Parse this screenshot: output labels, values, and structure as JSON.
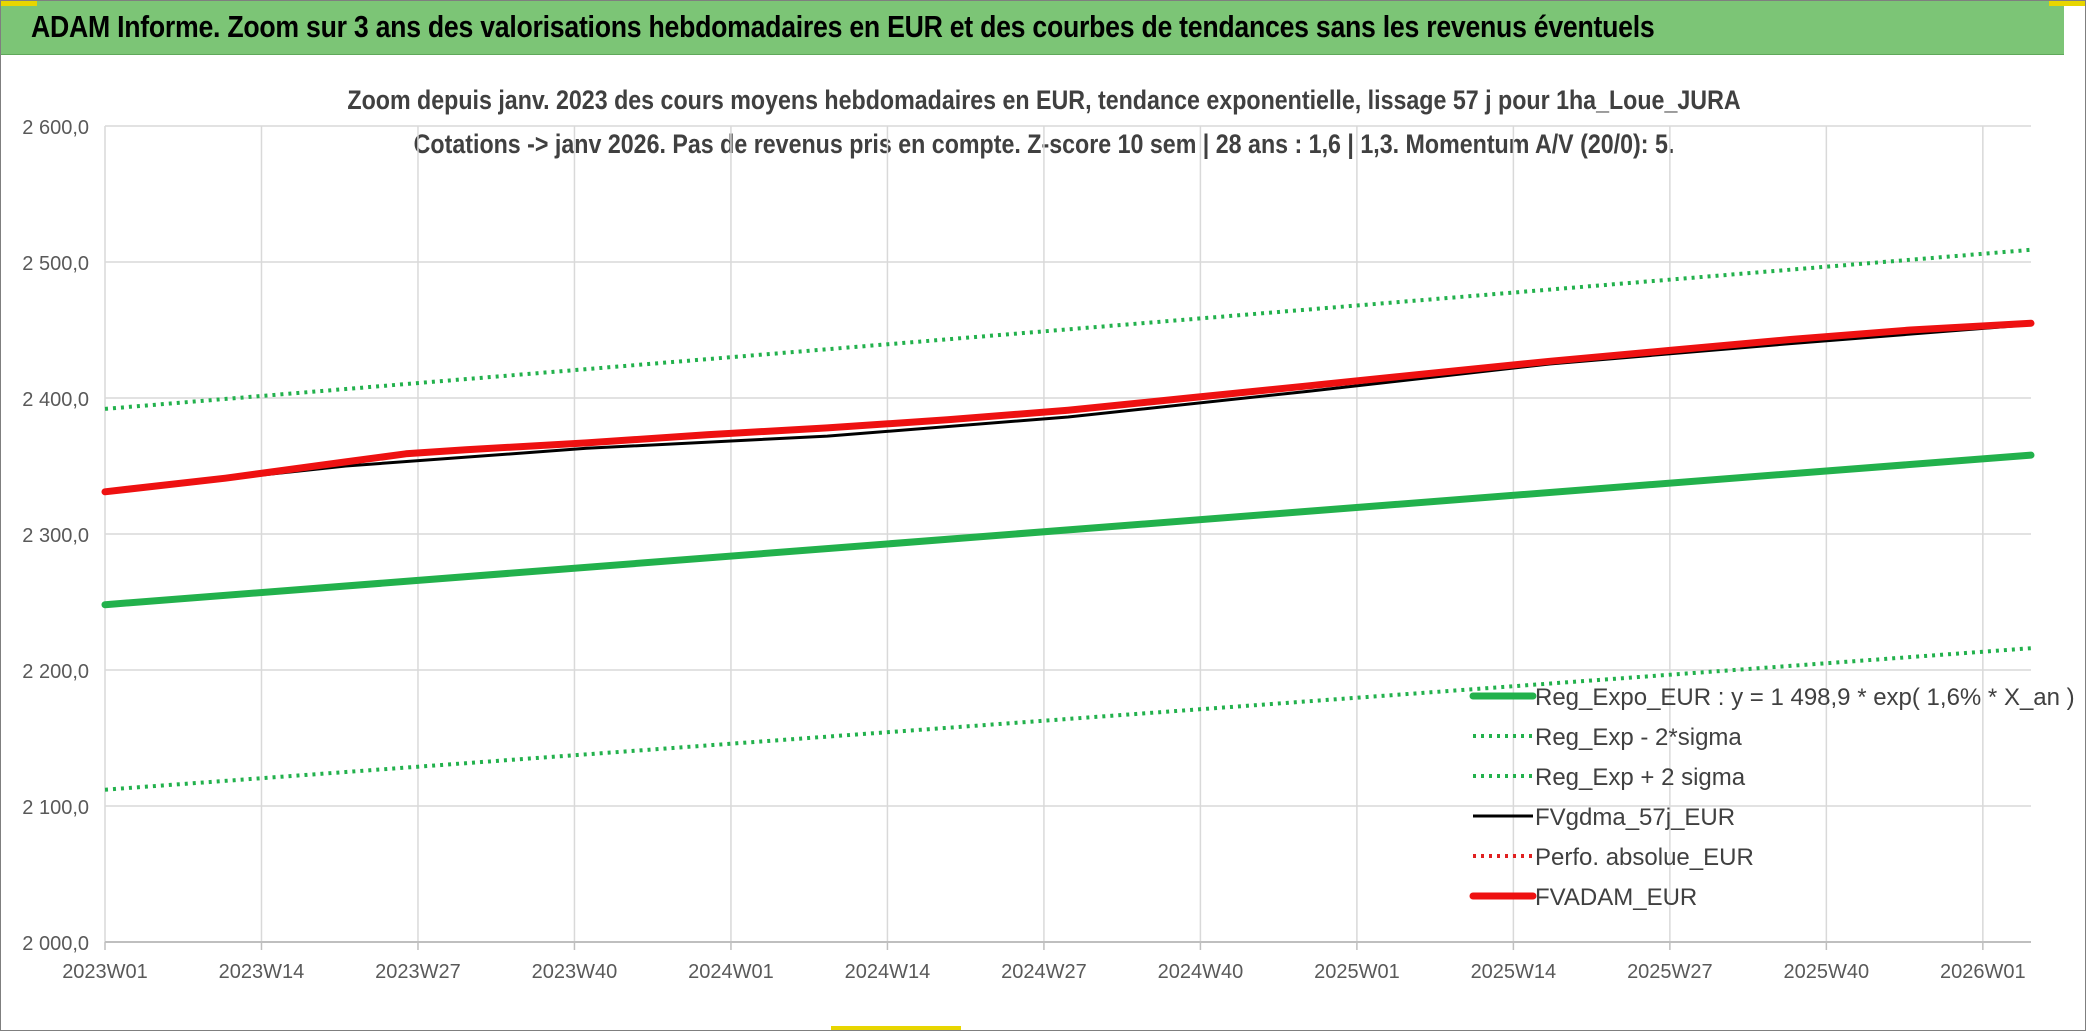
{
  "banner": {
    "title": "ADAM Informe. Zoom sur 3 ans des valorisations hebdomadaires en EUR et des courbes de tendances sans les revenus éventuels"
  },
  "chart_data": {
    "type": "line",
    "title": "Zoom depuis janv. 2023 des cours moyens hebdomadaires en EUR, tendance exponentielle, lissage 57 j pour 1ha_Loue_JURA",
    "subtitle": "Cotations -> janv 2026. Pas de revenus pris en compte. Z-score 10 sem | 28 ans : 1,6  | 1,3. Momentum A/V (20/0): 5.",
    "x_ticks": [
      "2023W01",
      "2023W14",
      "2023W27",
      "2023W40",
      "2024W01",
      "2024W14",
      "2024W27",
      "2024W40",
      "2025W01",
      "2025W14",
      "2025W27",
      "2025W40",
      "2026W01"
    ],
    "y_ticks": [
      "2 000,0",
      "2 100,0",
      "2 200,0",
      "2 300,0",
      "2 400,0",
      "2 500,0",
      "2 600,0"
    ],
    "ylim": [
      2000,
      2600
    ],
    "x_range_weeks": [
      0,
      160
    ],
    "x_tick_step_weeks": 13,
    "grid": true,
    "legend_position": "bottom-right",
    "series": [
      {
        "name": "Reg_Expo_EUR : y = 1 498,9 * exp( 1,6% *  X_an )",
        "color": "#22b14c",
        "style": "solid-thick",
        "x": [
          0,
          160
        ],
        "y": [
          2248,
          2358
        ]
      },
      {
        "name": "Reg_Exp - 2*sigma",
        "color": "#22b14c",
        "style": "dotted",
        "x": [
          0,
          160
        ],
        "y": [
          2112,
          2216
        ]
      },
      {
        "name": "Reg_Exp + 2 sigma",
        "color": "#22b14c",
        "style": "dotted",
        "x": [
          0,
          160
        ],
        "y": [
          2392,
          2509
        ]
      },
      {
        "name": "FVgdma_57j_EUR",
        "color": "#000000",
        "style": "solid",
        "x": [
          0,
          20,
          40,
          60,
          80,
          100,
          120,
          140,
          160
        ],
        "y": [
          2331,
          2350,
          2363,
          2372,
          2386,
          2405,
          2425,
          2440,
          2454
        ]
      },
      {
        "name": "Perfo. absolue_EUR",
        "color": "#e02020",
        "style": "dotted",
        "x": [],
        "y": []
      },
      {
        "name": "FVADAM_EUR",
        "color": "#ee1111",
        "style": "solid-thick",
        "x": [
          0,
          10,
          20,
          25,
          30,
          40,
          50,
          60,
          70,
          80,
          90,
          100,
          110,
          120,
          130,
          140,
          150,
          160
        ],
        "y": [
          2331,
          2341,
          2353,
          2359,
          2362,
          2367,
          2373,
          2378,
          2384,
          2391,
          2400,
          2409,
          2418,
          2427,
          2435,
          2443,
          2450,
          2455
        ]
      }
    ]
  }
}
